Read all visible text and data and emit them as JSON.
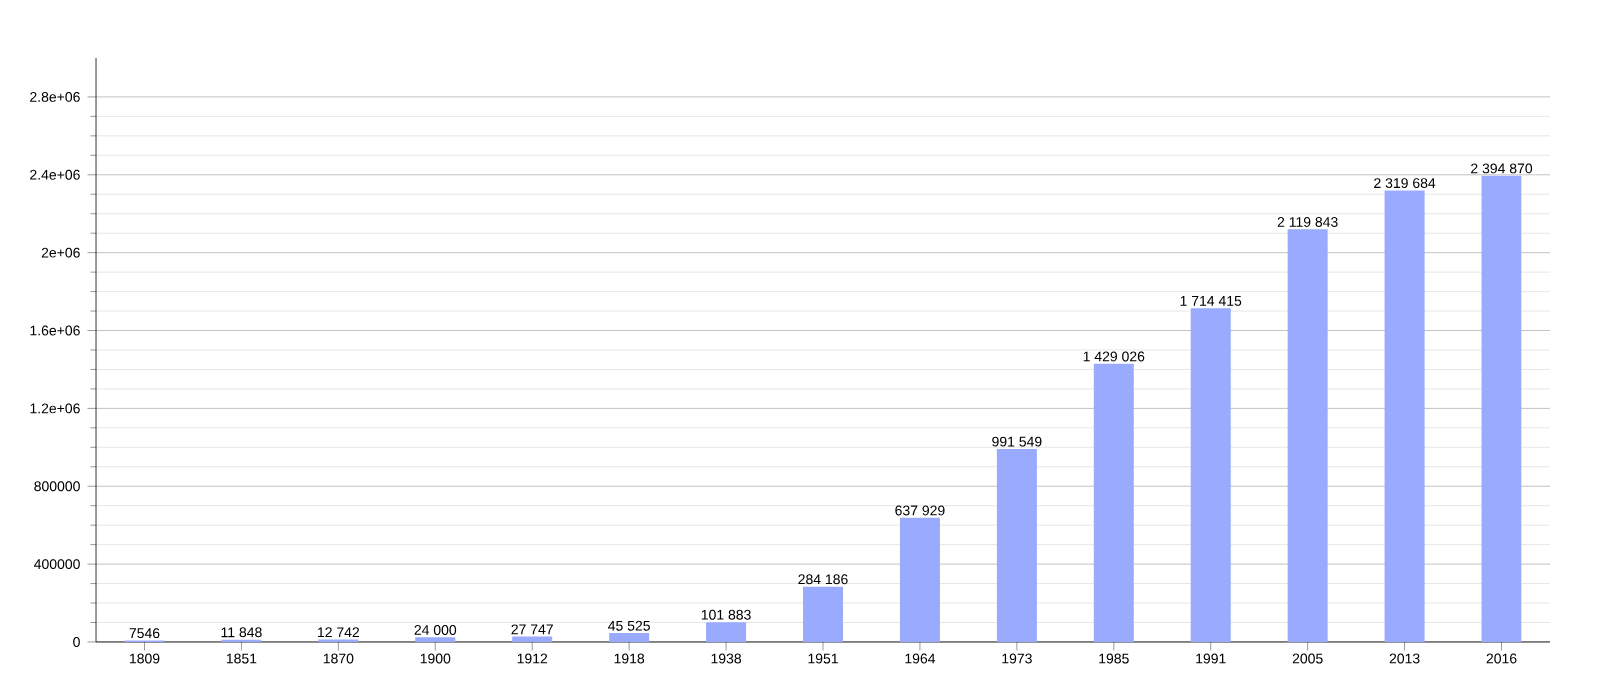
{
  "chart_data": {
    "type": "bar",
    "categories": [
      "1809",
      "1851",
      "1870",
      "1900",
      "1912",
      "1918",
      "1938",
      "1951",
      "1964",
      "1973",
      "1985",
      "1991",
      "2005",
      "2013",
      "2016"
    ],
    "values": [
      7546,
      11848,
      12742,
      24000,
      27747,
      45525,
      101883,
      284186,
      637929,
      991549,
      1429026,
      1714415,
      2119843,
      2319684,
      2394870
    ],
    "value_labels": [
      "7546",
      "11 848",
      "12 742",
      "24 000",
      "27 747",
      "45 525",
      "101 883",
      "284 186",
      "637 929",
      "991 549",
      "1 429 026",
      "1 714 415",
      "2 119 843",
      "2 319 684",
      "2 394 870"
    ],
    "color": "#99aaff",
    "ylim": [
      0,
      3000000
    ],
    "yticks": [
      0,
      400000,
      800000,
      {
        "value": 1200000,
        "label": "1.2e+06"
      },
      {
        "value": 1600000,
        "label": "1.6e+06"
      },
      {
        "value": 2000000,
        "label": "2e+06"
      },
      {
        "value": 2400000,
        "label": "2.4e+06"
      },
      {
        "value": 2800000,
        "label": "2.8e+06"
      }
    ],
    "grid": "y"
  }
}
